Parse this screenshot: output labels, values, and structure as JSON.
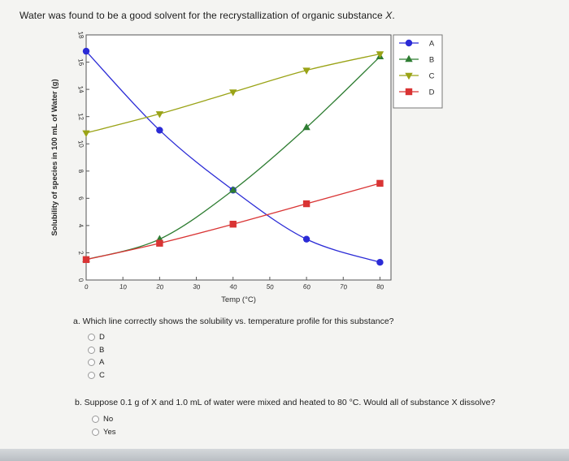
{
  "question": {
    "text_before": "Water was found to be a good solvent for the recrystallization of organic substance ",
    "substance": "X",
    "text_after": "."
  },
  "chart_data": {
    "type": "line",
    "xlabel": "Temp (°C)",
    "ylabel": "Solubility of species in 100 mL of Water (g)",
    "xlim": [
      0,
      83
    ],
    "ylim": [
      0,
      18
    ],
    "xticks": [
      0,
      10,
      20,
      30,
      40,
      50,
      60,
      70,
      80
    ],
    "yticks": [
      0,
      2,
      4,
      6,
      8,
      10,
      12,
      14,
      16,
      18
    ],
    "grid": false,
    "legend": "top-right",
    "series": [
      {
        "name": "A",
        "color": "#2b2bd6",
        "marker": "circle",
        "x": [
          0,
          20,
          40,
          60,
          80
        ],
        "y": [
          16.8,
          11.0,
          6.6,
          3.0,
          1.3
        ]
      },
      {
        "name": "B",
        "color": "#2e7d32",
        "marker": "triangle-up",
        "x": [
          0,
          20,
          40,
          60,
          80
        ],
        "y": [
          1.5,
          3.0,
          6.6,
          11.2,
          16.4
        ]
      },
      {
        "name": "C",
        "color": "#9aa316",
        "marker": "triangle-down",
        "x": [
          0,
          20,
          40,
          60,
          80
        ],
        "y": [
          10.8,
          12.2,
          13.8,
          15.4,
          16.6
        ]
      },
      {
        "name": "D",
        "color": "#d93434",
        "marker": "square",
        "x": [
          0,
          20,
          40,
          60,
          80
        ],
        "y": [
          1.5,
          2.7,
          4.1,
          5.6,
          7.1
        ]
      }
    ]
  },
  "part_a": {
    "label": "a. Which line correctly shows the solubility vs. temperature profile for this substance?",
    "options": [
      "D",
      "B",
      "A",
      "C"
    ]
  },
  "part_b": {
    "label": "b. Suppose 0.1 g of X and 1.0 mL of water were mixed and heated to 80 °C. Would all of substance X dissolve?",
    "options": [
      "No",
      "Yes"
    ]
  }
}
